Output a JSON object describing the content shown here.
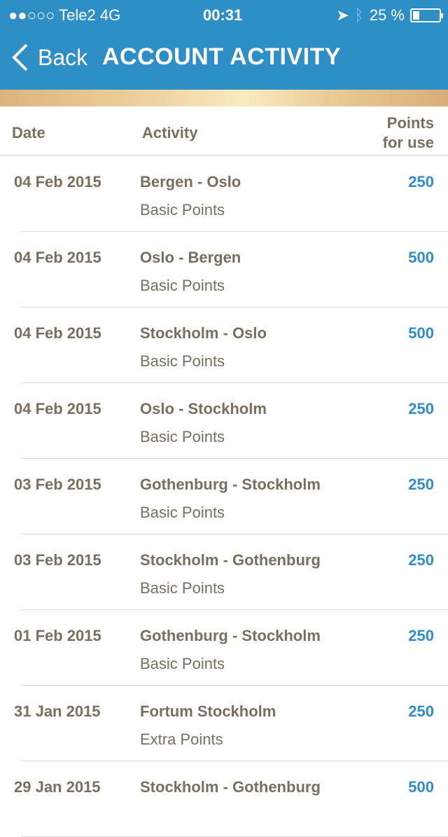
{
  "status_bar": {
    "carrier": "●●○○○ Tele2   4G",
    "time": "00:31",
    "battery": "25 %",
    "battery_level": 0.25
  },
  "nav": {
    "back_label": "Back",
    "title": "ACCOUNT ACTIVITY"
  },
  "table": {
    "headers": {
      "date": "Date",
      "activity": "Activity",
      "points_line1": "Points",
      "points_line2": "for use"
    },
    "rows": [
      {
        "date": "04 Feb 2015",
        "activity": "Bergen - Oslo",
        "type": "Basic Points",
        "points": "250"
      },
      {
        "date": "04 Feb 2015",
        "activity": "Oslo - Bergen",
        "type": "Basic Points",
        "points": "500"
      },
      {
        "date": "04 Feb 2015",
        "activity": "Stockholm - Oslo",
        "type": "Basic Points",
        "points": "500"
      },
      {
        "date": "04 Feb 2015",
        "activity": "Oslo - Stockholm",
        "type": "Basic Points",
        "points": "250"
      },
      {
        "date": "03 Feb 2015",
        "activity": "Gothenburg - Stockholm",
        "type": "Basic Points",
        "points": "250"
      },
      {
        "date": "03 Feb 2015",
        "activity": "Stockholm - Gothenburg",
        "type": "Basic Points",
        "points": "250"
      },
      {
        "date": "01 Feb 2015",
        "activity": "Gothenburg - Stockholm",
        "type": "Basic Points",
        "points": "250"
      },
      {
        "date": "31 Jan 2015",
        "activity": "Fortum Stockholm",
        "type": "Extra Points",
        "points": "250"
      },
      {
        "date": "29 Jan 2015",
        "activity": "Stockholm - Gothenburg",
        "type": "",
        "points": "500"
      }
    ]
  },
  "colors": {
    "header_blue": "#2e8fc7",
    "text_brown": "#7a6e5d",
    "points_blue": "#2e8ecb"
  }
}
